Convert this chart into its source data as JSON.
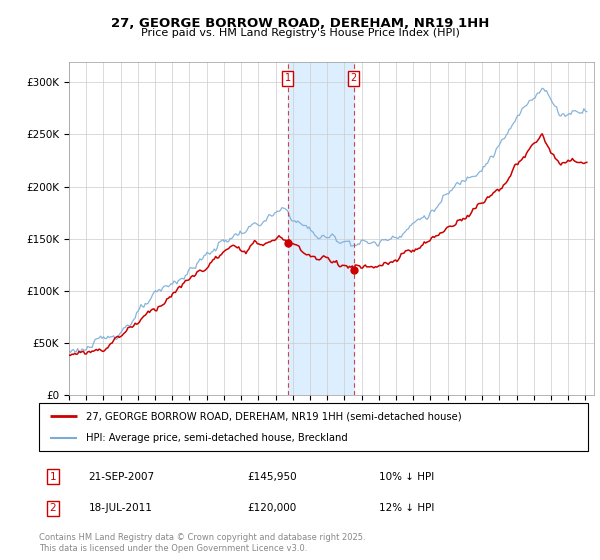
{
  "title": "27, GEORGE BORROW ROAD, DEREHAM, NR19 1HH",
  "subtitle": "Price paid vs. HM Land Registry's House Price Index (HPI)",
  "ylim": [
    0,
    320000
  ],
  "yticks": [
    0,
    50000,
    100000,
    150000,
    200000,
    250000,
    300000
  ],
  "ytick_labels": [
    "£0",
    "£50K",
    "£100K",
    "£150K",
    "£200K",
    "£250K",
    "£300K"
  ],
  "sale1_date": "21-SEP-2007",
  "sale1_price": 145950,
  "sale1_hpi_diff": "10% ↓ HPI",
  "sale2_date": "18-JUL-2011",
  "sale2_price": 120000,
  "sale2_hpi_diff": "12% ↓ HPI",
  "sale1_x": 2007.72,
  "sale2_x": 2011.54,
  "legend_label1": "27, GEORGE BORROW ROAD, DEREHAM, NR19 1HH (semi-detached house)",
  "legend_label2": "HPI: Average price, semi-detached house, Breckland",
  "footer": "Contains HM Land Registry data © Crown copyright and database right 2025.\nThis data is licensed under the Open Government Licence v3.0.",
  "line1_color": "#cc0000",
  "line2_color": "#7aacd6",
  "shade_color": "#ddeeff",
  "marker_box_color": "#cc0000",
  "xmin": 1995,
  "xmax": 2025.5
}
